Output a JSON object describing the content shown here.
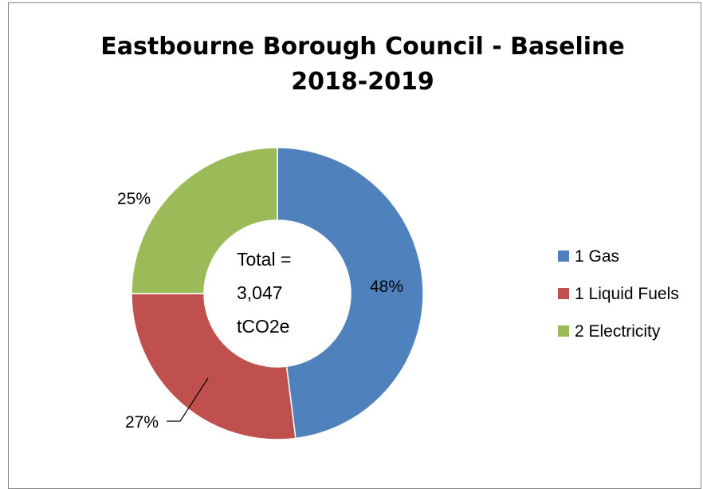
{
  "chart_data": {
    "type": "pie",
    "donut": true,
    "title": "Eastbourne Borough Council - Baseline 2018-2019",
    "title_lines": [
      "Eastbourne Borough Council - Baseline",
      "2018-2019"
    ],
    "categories": [
      "1 Gas",
      "1 Liquid Fuels",
      "2 Electricity"
    ],
    "values": [
      48,
      27,
      25
    ],
    "data_labels": [
      "48%",
      "27%",
      "25%"
    ],
    "colors": [
      "#4f81bd",
      "#c0504d",
      "#9bbb59"
    ],
    "center_text": [
      "Total =",
      "3,047",
      "tCO2e"
    ],
    "legend_position": "right"
  }
}
